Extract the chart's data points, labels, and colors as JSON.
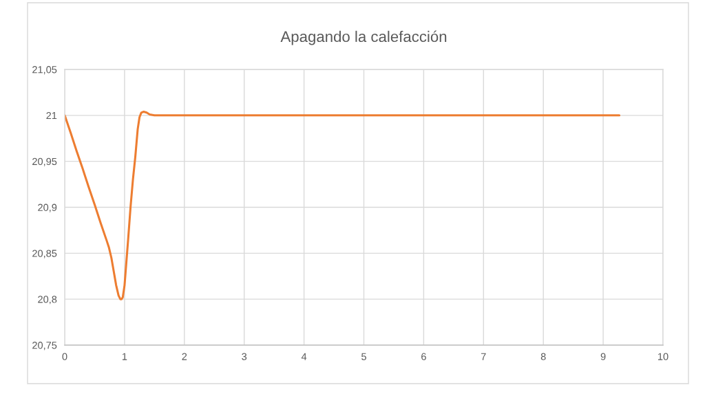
{
  "chart_data": {
    "type": "line",
    "title": "Apagando la calefacción",
    "x": [
      0,
      0.1,
      0.2,
      0.3,
      0.4,
      0.5,
      0.6,
      0.7,
      0.74,
      0.78,
      0.82,
      0.86,
      0.9,
      0.93,
      0.95,
      0.97,
      1.0,
      1.03,
      1.06,
      1.1,
      1.14,
      1.18,
      1.22,
      1.25,
      1.28,
      1.32,
      1.37,
      1.42,
      1.5,
      2,
      3,
      4,
      5,
      6,
      7,
      8,
      9,
      9.27
    ],
    "series": [
      {
        "color": "#ed7d31",
        "values": [
          21,
          20.981,
          20.961,
          20.942,
          20.922,
          20.903,
          20.883,
          20.864,
          20.856,
          20.845,
          20.83,
          20.815,
          20.804,
          20.8,
          20.8,
          20.802,
          20.815,
          20.84,
          20.865,
          20.9,
          20.93,
          20.955,
          20.985,
          20.998,
          21.003,
          21.004,
          21.003,
          21.001,
          21,
          21,
          21,
          21,
          21,
          21,
          21,
          21,
          21,
          21
        ]
      }
    ],
    "xlim": [
      0,
      10
    ],
    "xticks": [
      0,
      1,
      2,
      3,
      4,
      5,
      6,
      7,
      8,
      9,
      10
    ],
    "ylim": [
      20.75,
      21.05
    ],
    "yticks": [
      {
        "value": 20.75,
        "label": "20,75"
      },
      {
        "value": 20.8,
        "label": "20,8"
      },
      {
        "value": 20.85,
        "label": "20,85"
      },
      {
        "value": 20.9,
        "label": "20,9"
      },
      {
        "value": 20.95,
        "label": "20,95"
      },
      {
        "value": 21,
        "label": "21"
      },
      {
        "value": 21.05,
        "label": "21,05"
      }
    ],
    "grid": true,
    "marker": "none",
    "line_style": "solid"
  }
}
